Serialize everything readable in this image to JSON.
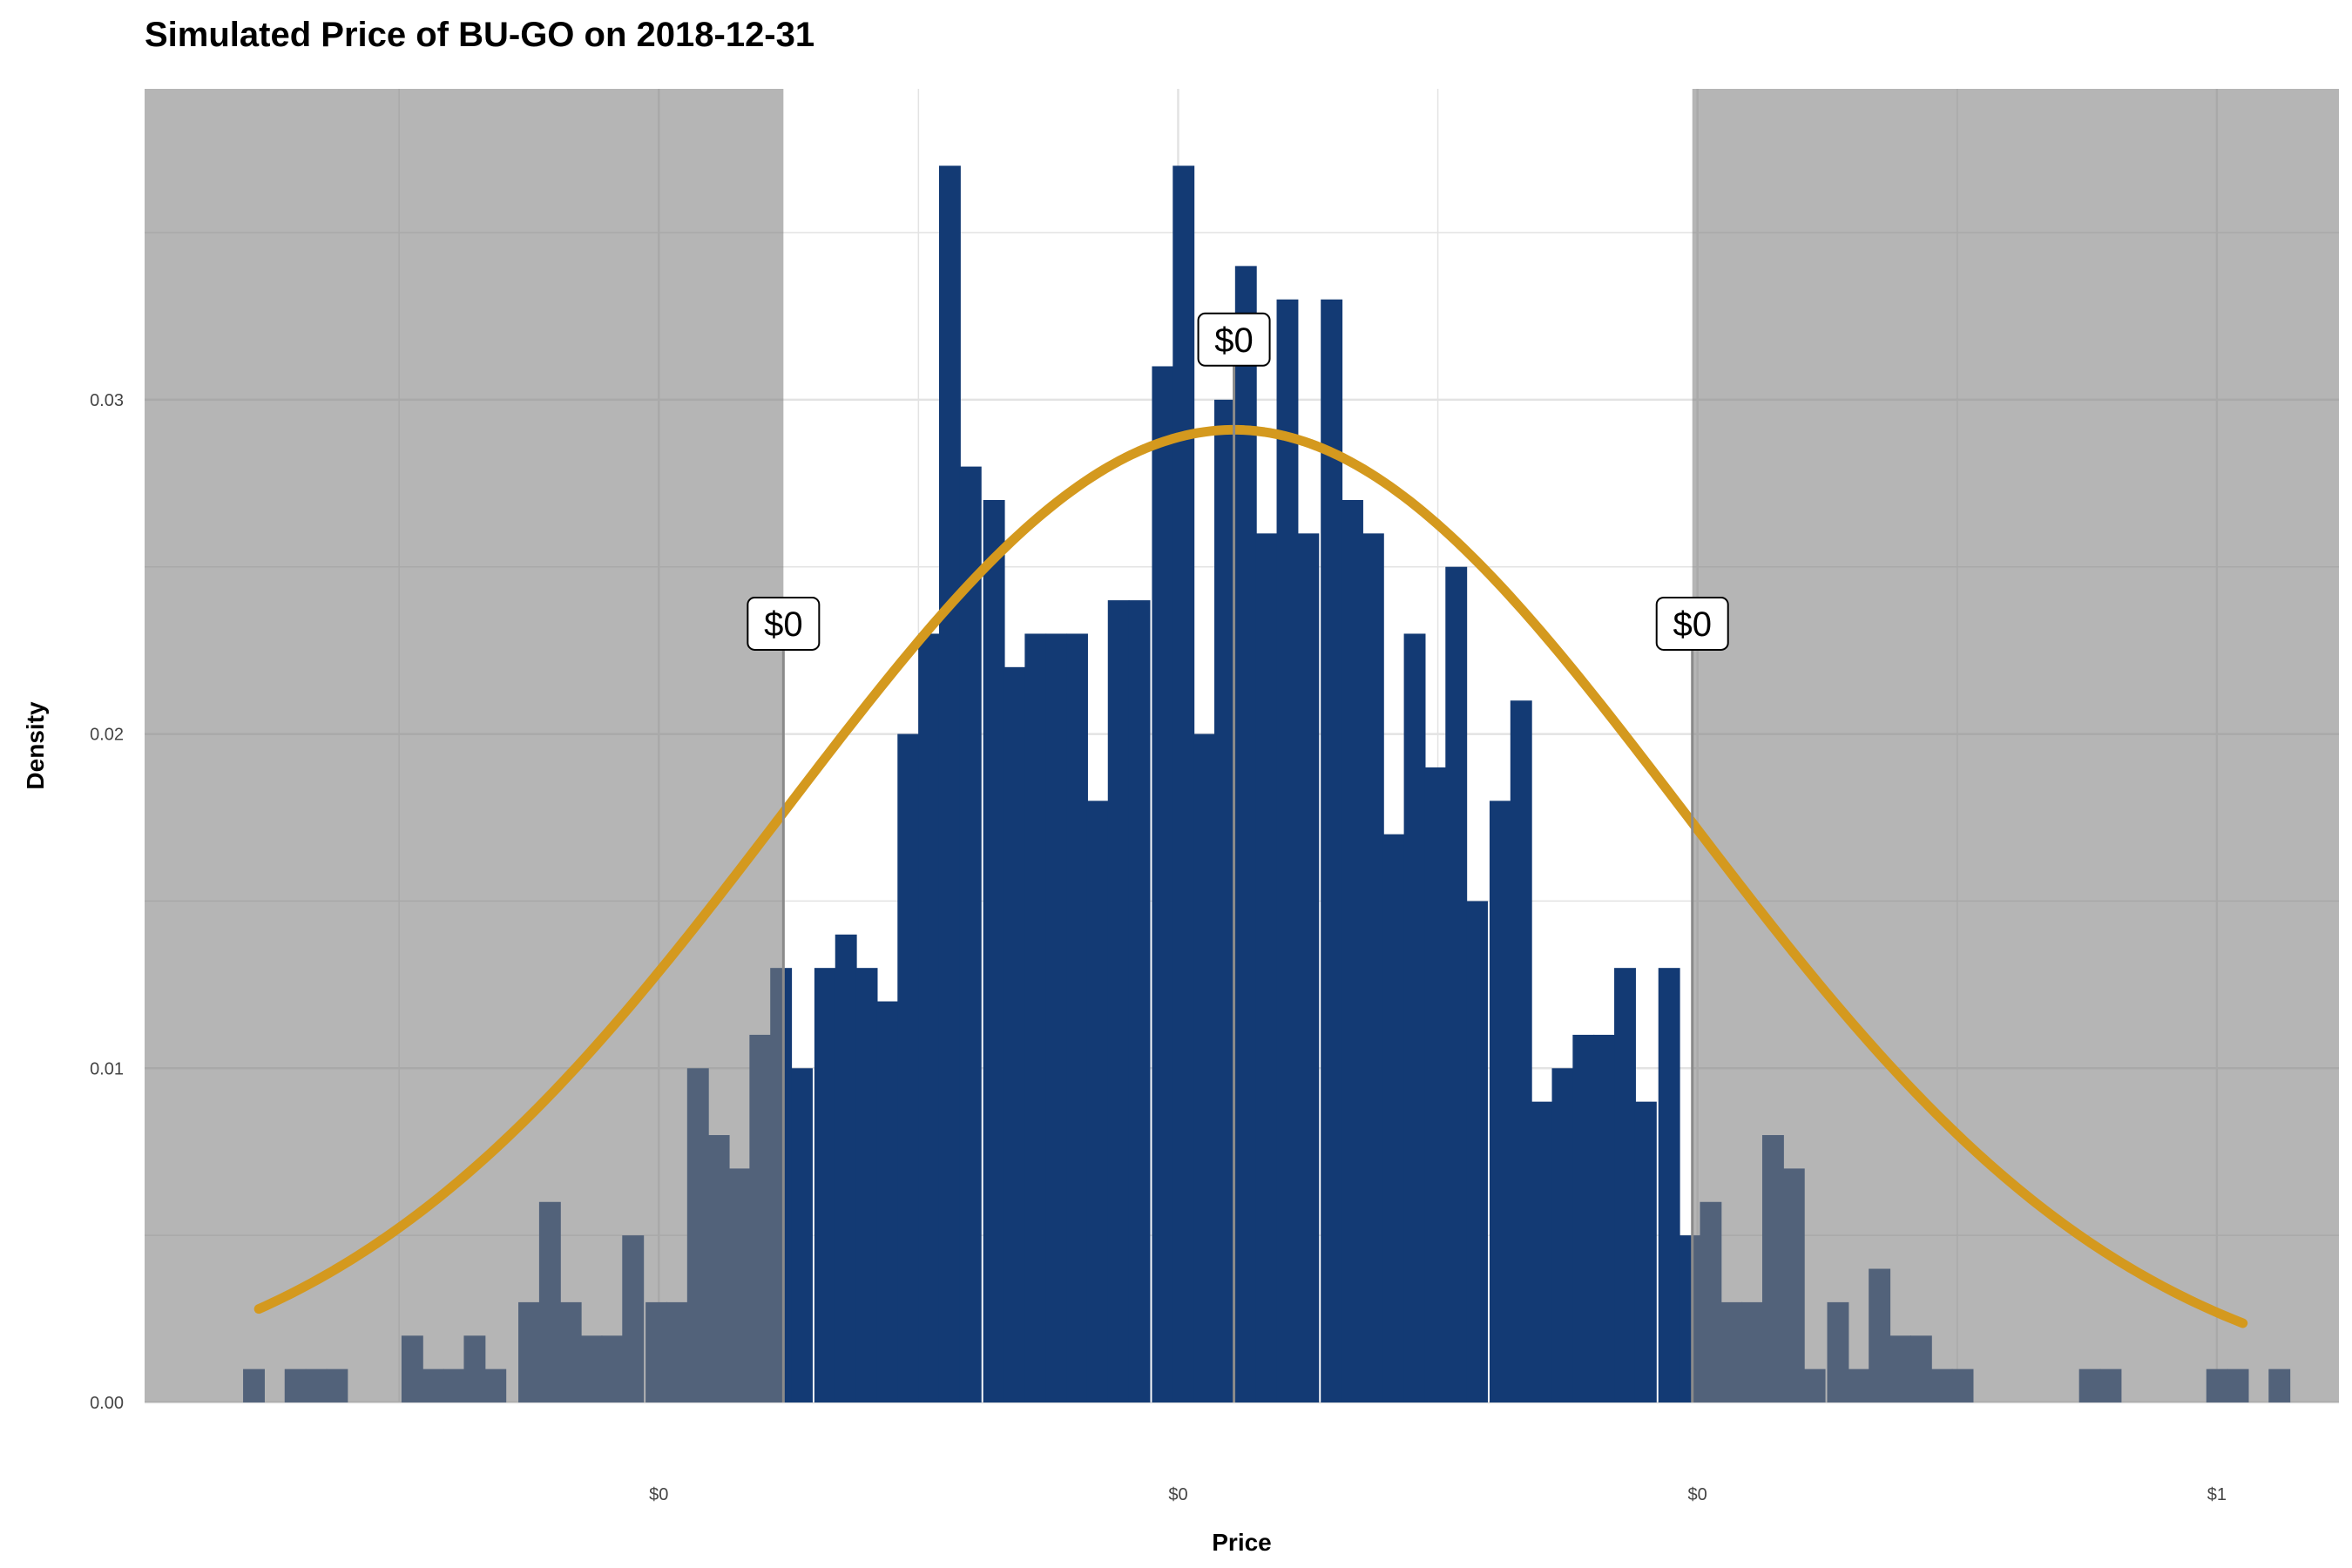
{
  "chart_data": {
    "type": "bar",
    "title": "Simulated Price of BU-GO on 2018-12-31",
    "xlabel": "Price",
    "ylabel": "Density",
    "ylim": [
      0,
      0.0393
    ],
    "y_ticks": [
      "0.00",
      "0.01",
      "0.02",
      "0.03"
    ],
    "y_tick_values": [
      0,
      0.01,
      0.02,
      0.03
    ],
    "x_tick_labels": [
      "$0",
      "$0",
      "$0",
      "$1"
    ],
    "x_tick_values": [
      0.4,
      0.6,
      0.8,
      1.0
    ],
    "xlim": [
      0.202,
      1.047
    ],
    "bin_width": 0.00815,
    "bins": {
      "x": [
        0.244,
        0.26,
        0.268,
        0.276,
        0.305,
        0.313,
        0.321,
        0.329,
        0.337,
        0.35,
        0.358,
        0.366,
        0.374,
        0.382,
        0.39,
        0.399,
        0.407,
        0.415,
        0.423,
        0.431,
        0.439,
        0.447,
        0.455,
        0.464,
        0.472,
        0.48,
        0.488,
        0.496,
        0.504,
        0.512,
        0.52,
        0.529,
        0.537,
        0.545,
        0.553,
        0.561,
        0.569,
        0.577,
        0.585,
        0.594,
        0.602,
        0.61,
        0.618,
        0.626,
        0.634,
        0.642,
        0.65,
        0.659,
        0.667,
        0.675,
        0.683,
        0.691,
        0.699,
        0.707,
        0.715,
        0.724,
        0.732,
        0.74,
        0.748,
        0.756,
        0.764,
        0.772,
        0.78,
        0.789,
        0.797,
        0.805,
        0.813,
        0.821,
        0.829,
        0.837,
        0.845,
        0.854,
        0.862,
        0.87,
        0.878,
        0.886,
        0.894,
        0.902,
        0.91,
        0.919,
        0.927,
        0.935,
        0.943,
        0.951,
        0.959,
        0.967,
        0.975,
        0.984,
        0.992,
        1.0,
        1.008,
        1.016,
        1.024
      ],
      "values": [
        0.001,
        0.001,
        0.001,
        0.001,
        0.002,
        0.001,
        0.001,
        0.002,
        0.001,
        0.003,
        0.006,
        0.003,
        0.002,
        0.002,
        0.005,
        0.003,
        0.003,
        0.01,
        0.008,
        0.007,
        0.011,
        0.013,
        0.01,
        0.013,
        0.014,
        0.013,
        0.012,
        0.02,
        0.023,
        0.037,
        0.028,
        0.027,
        0.022,
        0.023,
        0.023,
        0.023,
        0.018,
        0.024,
        0.024,
        0.031,
        0.037,
        0.02,
        0.03,
        0.034,
        0.026,
        0.033,
        0.026,
        0.033,
        0.027,
        0.026,
        0.017,
        0.023,
        0.019,
        0.025,
        0.015,
        0.018,
        0.021,
        0.009,
        0.01,
        0.011,
        0.011,
        0.013,
        0.009,
        0.013,
        0.005,
        0.006,
        0.003,
        0.003,
        0.008,
        0.007,
        0.001,
        0.003,
        0.001,
        0.004,
        0.002,
        0.002,
        0.001,
        0.001,
        0.0,
        0.0,
        0.0,
        0.0,
        0.0,
        0.001,
        0.001,
        0.0,
        0.0,
        0.0,
        0.0,
        0.001,
        0.001,
        0.0,
        0.001
      ]
    },
    "normal_curve": {
      "mean": 0.6215,
      "sd": 0.1735,
      "peak_density": 0.0291,
      "x_range": [
        0.246,
        1.01
      ]
    },
    "shaded_regions": [
      [
        0.202,
        0.448
      ],
      [
        0.798,
        1.047
      ]
    ],
    "reference_lines": [
      {
        "x": 0.448,
        "label": "$0",
        "label_y": 0.0233
      },
      {
        "x": 0.798,
        "label": "$0",
        "label_y": 0.0233
      },
      {
        "x": 0.6215,
        "label": "$0",
        "label_y": 0.0318
      }
    ],
    "grid": true,
    "legend": "none",
    "colors": {
      "bars": "#133A74",
      "curve": "#D4991E",
      "shade": "#7F7F7F",
      "shade_opacity": 0.58,
      "grid": "#E3E3E3"
    }
  }
}
